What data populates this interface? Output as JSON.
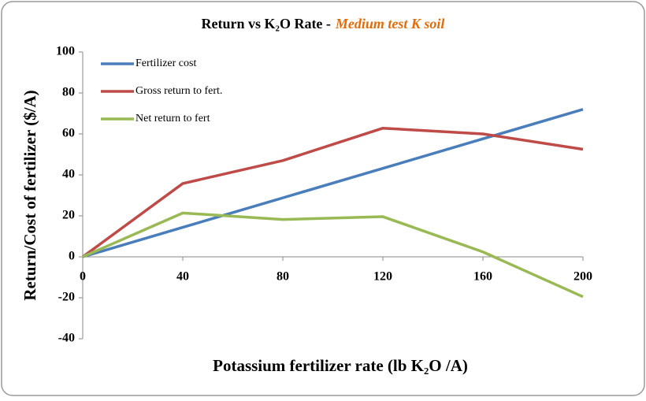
{
  "chart_data": {
    "type": "line",
    "title": "Return vs K₂O Rate -",
    "subtitle": "Medium test K soil",
    "xlabel": "Potassium fertilizer rate (lb K₂O /A)",
    "ylabel": "Return/Cost of fertilizer ($/A)",
    "x": [
      0,
      40,
      80,
      120,
      160,
      200
    ],
    "series": [
      {
        "name": "Fertilizer cost",
        "color": "#4a7ebb",
        "values": [
          0,
          14.4,
          28.8,
          43.2,
          57.6,
          72
        ]
      },
      {
        "name": "Gross return to fert.",
        "color": "#be4b48",
        "values": [
          0,
          35.8,
          47,
          62.8,
          60,
          52.5
        ]
      },
      {
        "name": "Net return to fert",
        "color": "#98b954",
        "values": [
          0,
          21.4,
          18.2,
          19.6,
          2.4,
          -19.5
        ]
      }
    ],
    "xlim": [
      0,
      200
    ],
    "xticks": [
      0,
      40,
      80,
      120,
      160,
      200
    ],
    "ylim": [
      -40,
      100
    ],
    "yticks": [
      -40,
      -20,
      0,
      20,
      40,
      60,
      80,
      100
    ],
    "grid": false,
    "legend": "upper left"
  }
}
